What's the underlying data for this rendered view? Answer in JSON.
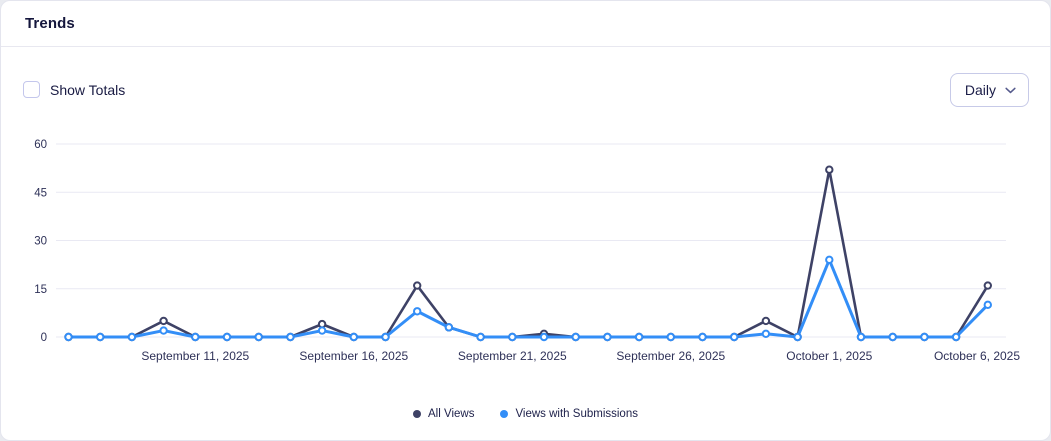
{
  "header": {
    "title": "Trends"
  },
  "controls": {
    "show_totals_label": "Show Totals",
    "show_totals_checked": false,
    "interval_value": "Daily"
  },
  "colors": {
    "all_views": "#3e4266",
    "views_with_submissions": "#338ef7",
    "grid": "#e9e9f3",
    "axis_text": "#2e3158",
    "marker_fill": "#ffffff"
  },
  "chart_data": {
    "type": "line",
    "x": [
      "September 7, 2025",
      "September 8, 2025",
      "September 9, 2025",
      "September 10, 2025",
      "September 11, 2025",
      "September 12, 2025",
      "September 13, 2025",
      "September 14, 2025",
      "September 15, 2025",
      "September 16, 2025",
      "September 17, 2025",
      "September 18, 2025",
      "September 19, 2025",
      "September 20, 2025",
      "September 21, 2025",
      "September 22, 2025",
      "September 23, 2025",
      "September 24, 2025",
      "September 25, 2025",
      "September 26, 2025",
      "September 27, 2025",
      "September 28, 2025",
      "September 29, 2025",
      "September 30, 2025",
      "October 1, 2025",
      "October 2, 2025",
      "October 3, 2025",
      "October 4, 2025",
      "October 5, 2025",
      "October 6, 2025"
    ],
    "series": [
      {
        "name": "All Views",
        "color_key": "all_views",
        "values": [
          0,
          0,
          0,
          5,
          0,
          0,
          0,
          0,
          4,
          0,
          0,
          16,
          3,
          0,
          0,
          1,
          0,
          0,
          0,
          0,
          0,
          0,
          5,
          0,
          52,
          0,
          0,
          0,
          0,
          16
        ]
      },
      {
        "name": "Views with Submissions",
        "color_key": "views_with_submissions",
        "values": [
          0,
          0,
          0,
          2,
          0,
          0,
          0,
          0,
          2,
          0,
          0,
          8,
          3,
          0,
          0,
          0,
          0,
          0,
          0,
          0,
          0,
          0,
          1,
          0,
          24,
          0,
          0,
          0,
          0,
          10
        ]
      }
    ],
    "ylim": [
      0,
      60
    ],
    "y_ticks": [
      0,
      15,
      30,
      45,
      60
    ],
    "x_tick_indices": [
      4,
      9,
      14,
      19,
      24,
      29
    ],
    "x_tick_labels": [
      "September 11, 2025",
      "September 16, 2025",
      "September 21, 2025",
      "September 26, 2025",
      "October 1, 2025",
      "October 6, 2025"
    ],
    "grid": true,
    "legend_position": "bottom"
  },
  "legend": {
    "items": [
      {
        "label": "All Views",
        "color": "#3e4266"
      },
      {
        "label": "Views with Submissions",
        "color": "#338ef7"
      }
    ]
  }
}
